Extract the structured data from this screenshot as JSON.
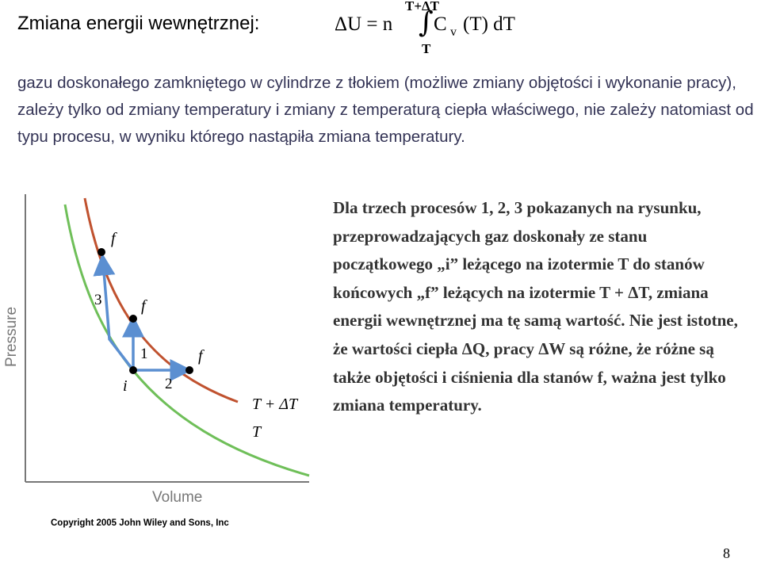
{
  "title": "Zmiana energii wewnętrznej:",
  "formula": {
    "lhs": "ΔU = n",
    "upper_limit": "T+ΔT",
    "lower_limit": "T",
    "integral_sign": "∫",
    "integrand_c": "C",
    "integrand_sub": "v",
    "integrand_rest": "(T) dT"
  },
  "paragraph1": "gazu doskonałego zamkniętego w cylindrze z tłokiem (możliwe zmiany objętości i wykonanie pracy), zależy tylko od zmiany temperatury i zmiany z temperaturą ciepła właściwego, nie zależy natomiast od typu procesu, w wyniku którego nastąpiła zmiana temperatury.",
  "paragraph2": "Dla trzech procesów 1, 2, 3 pokazanych na rysunku, przeprowadzających gaz doskonały ze stanu początkowego „i” leżącego na izotermie T do stanów końcowych „f” leżących na izotermie T + ΔT, zmiana energii wewnętrznej ma tę samą wartość. Nie jest istotne, że wartości ciepła ΔQ, pracy ΔW są różne, że różne są także objętości i ciśnienia dla stanów f, ważna jest tylko zmiana temperatury.",
  "diagram": {
    "y_axis_label": "Pressure",
    "x_axis_label": "Volume",
    "initial_point_label": "i",
    "final_point_label": "f",
    "process_labels": [
      "1",
      "2",
      "3"
    ],
    "isotherm_labels": [
      "T + ΔT",
      "T"
    ],
    "colors": {
      "isotherm_hot": "#c0522f",
      "isotherm_cold": "#6fbf59",
      "process_arrow": "#5b8fd1",
      "axis": "#777777"
    }
  },
  "copyright": "Copyright 2005 John Wiley and Sons, Inc",
  "page_number": "8"
}
